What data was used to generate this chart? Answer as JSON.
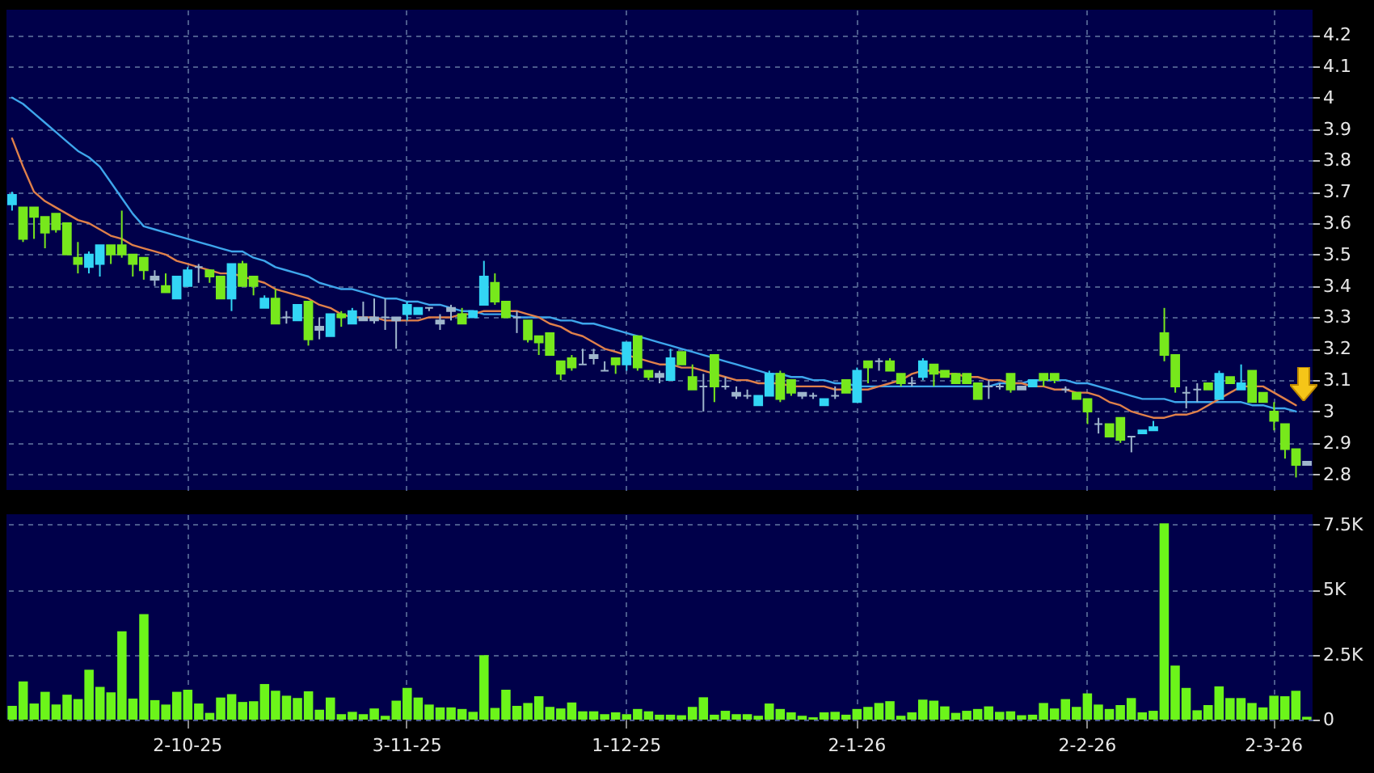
{
  "chart_data": [
    {
      "type": "candlestick",
      "categories": [
        null,
        null,
        null,
        null,
        null,
        null,
        null,
        null,
        null,
        null,
        null,
        null,
        null,
        null,
        null,
        null,
        null,
        null,
        null,
        null,
        null,
        null,
        null,
        null,
        null,
        null,
        null,
        null,
        null,
        null,
        null,
        null,
        null,
        null,
        null,
        null,
        null,
        null,
        null,
        null,
        null,
        null,
        null,
        null,
        null,
        null,
        null,
        null,
        null,
        null,
        null,
        null,
        null,
        null,
        null,
        null,
        null,
        null,
        null,
        null,
        null,
        null,
        null,
        null,
        null,
        null,
        null,
        null,
        null,
        null,
        null,
        null,
        null,
        null,
        null,
        null,
        null,
        null,
        null,
        null,
        null,
        null,
        null,
        null,
        null,
        null,
        null,
        null,
        null,
        null,
        null,
        null,
        null,
        null,
        null,
        null,
        null,
        null,
        null,
        null,
        null,
        null,
        null,
        null,
        null,
        null,
        null,
        null,
        null,
        null,
        null,
        null,
        null,
        null,
        null,
        null,
        null,
        null,
        null
      ],
      "ohlc": [
        [
          3.66,
          3.7,
          3.64,
          3.69
        ],
        [
          3.65,
          3.65,
          3.54,
          3.55
        ],
        [
          3.65,
          3.65,
          3.55,
          3.62
        ],
        [
          3.62,
          3.62,
          3.52,
          3.57
        ],
        [
          3.63,
          3.63,
          3.57,
          3.58
        ],
        [
          3.6,
          3.6,
          3.5,
          3.5
        ],
        [
          3.49,
          3.54,
          3.44,
          3.47
        ],
        [
          3.46,
          3.51,
          3.44,
          3.5
        ],
        [
          3.47,
          3.53,
          3.43,
          3.53
        ],
        [
          3.53,
          3.53,
          3.47,
          3.5
        ],
        [
          3.53,
          3.64,
          3.49,
          3.5
        ],
        [
          3.5,
          3.5,
          3.43,
          3.47
        ],
        [
          3.49,
          3.49,
          3.42,
          3.45
        ],
        [
          3.42,
          3.45,
          3.4,
          3.43
        ],
        [
          3.4,
          3.44,
          3.38,
          3.38
        ],
        [
          3.36,
          3.43,
          3.36,
          3.43
        ],
        [
          3.4,
          3.46,
          3.4,
          3.45
        ],
        [
          3.46,
          3.47,
          3.41,
          3.46
        ],
        [
          3.45,
          3.45,
          3.41,
          3.43
        ],
        [
          3.43,
          3.43,
          3.36,
          3.36
        ],
        [
          3.36,
          3.47,
          3.32,
          3.47
        ],
        [
          3.47,
          3.48,
          3.4,
          3.4
        ],
        [
          3.43,
          3.43,
          3.37,
          3.4
        ],
        [
          3.33,
          3.37,
          3.33,
          3.36
        ],
        [
          3.36,
          3.39,
          3.28,
          3.28
        ],
        [
          3.3,
          3.32,
          3.28,
          3.3
        ],
        [
          3.29,
          3.34,
          3.29,
          3.34
        ],
        [
          3.35,
          3.35,
          3.21,
          3.23
        ],
        [
          3.26,
          3.3,
          3.23,
          3.27
        ],
        [
          3.24,
          3.31,
          3.24,
          3.31
        ],
        [
          3.31,
          3.32,
          3.27,
          3.3
        ],
        [
          3.28,
          3.33,
          3.28,
          3.32
        ],
        [
          3.29,
          3.35,
          3.29,
          3.3
        ],
        [
          3.3,
          3.36,
          3.28,
          3.29
        ],
        [
          3.3,
          3.36,
          3.26,
          3.3
        ],
        [
          3.3,
          3.3,
          3.2,
          3.29
        ],
        [
          3.31,
          3.35,
          3.29,
          3.34
        ],
        [
          3.31,
          3.33,
          3.31,
          3.33
        ],
        [
          3.33,
          3.33,
          3.32,
          3.33
        ],
        [
          3.29,
          3.31,
          3.26,
          3.28
        ],
        [
          3.33,
          3.34,
          3.29,
          3.32
        ],
        [
          3.31,
          3.33,
          3.28,
          3.28
        ],
        [
          3.3,
          3.32,
          3.3,
          3.32
        ],
        [
          3.34,
          3.48,
          3.34,
          3.43
        ],
        [
          3.41,
          3.44,
          3.34,
          3.35
        ],
        [
          3.35,
          3.35,
          3.3,
          3.3
        ],
        [
          3.3,
          3.32,
          3.25,
          3.3
        ],
        [
          3.29,
          3.29,
          3.22,
          3.23
        ],
        [
          3.24,
          3.24,
          3.18,
          3.22
        ],
        [
          3.25,
          3.25,
          3.18,
          3.18
        ],
        [
          3.16,
          3.16,
          3.1,
          3.12
        ],
        [
          3.17,
          3.18,
          3.13,
          3.14
        ],
        [
          3.15,
          3.2,
          3.15,
          3.15
        ],
        [
          3.17,
          3.2,
          3.15,
          3.18
        ],
        [
          3.13,
          3.16,
          3.13,
          3.13
        ],
        [
          3.17,
          3.17,
          3.12,
          3.15
        ],
        [
          3.15,
          3.22,
          3.13,
          3.22
        ],
        [
          3.24,
          3.24,
          3.13,
          3.14
        ],
        [
          3.13,
          3.13,
          3.1,
          3.11
        ],
        [
          3.12,
          3.13,
          3.09,
          3.11
        ],
        [
          3.1,
          3.2,
          3.1,
          3.17
        ],
        [
          3.19,
          3.19,
          3.15,
          3.15
        ],
        [
          3.11,
          3.15,
          3.07,
          3.07
        ],
        [
          3.08,
          3.12,
          3.0,
          3.08
        ],
        [
          3.18,
          3.18,
          3.03,
          3.08
        ],
        [
          3.08,
          3.11,
          3.07,
          3.08
        ],
        [
          3.06,
          3.08,
          3.04,
          3.05
        ],
        [
          3.05,
          3.07,
          3.04,
          3.05
        ],
        [
          3.02,
          3.05,
          3.02,
          3.05
        ],
        [
          3.05,
          3.13,
          3.05,
          3.12
        ],
        [
          3.12,
          3.13,
          3.03,
          3.04
        ],
        [
          3.1,
          3.1,
          3.05,
          3.06
        ],
        [
          3.06,
          3.06,
          3.04,
          3.05
        ],
        [
          3.05,
          3.06,
          3.04,
          3.05
        ],
        [
          3.02,
          3.04,
          3.02,
          3.04
        ],
        [
          3.05,
          3.08,
          3.04,
          3.05
        ],
        [
          3.1,
          3.1,
          3.06,
          3.06
        ],
        [
          3.03,
          3.14,
          3.03,
          3.13
        ],
        [
          3.16,
          3.16,
          3.09,
          3.14
        ],
        [
          3.16,
          3.17,
          3.13,
          3.16
        ],
        [
          3.16,
          3.17,
          3.13,
          3.13
        ],
        [
          3.12,
          3.12,
          3.08,
          3.09
        ],
        [
          3.09,
          3.11,
          3.08,
          3.09
        ],
        [
          3.11,
          3.17,
          3.1,
          3.16
        ],
        [
          3.15,
          3.15,
          3.08,
          3.12
        ],
        [
          3.13,
          3.13,
          3.11,
          3.11
        ],
        [
          3.12,
          3.12,
          3.09,
          3.09
        ],
        [
          3.12,
          3.12,
          3.09,
          3.09
        ],
        [
          3.09,
          3.09,
          3.04,
          3.04
        ],
        [
          3.08,
          3.1,
          3.04,
          3.08
        ],
        [
          3.08,
          3.09,
          3.07,
          3.08
        ],
        [
          3.12,
          3.12,
          3.06,
          3.07
        ],
        [
          3.08,
          3.08,
          3.07,
          3.07
        ],
        [
          3.08,
          3.1,
          3.08,
          3.1
        ],
        [
          3.12,
          3.12,
          3.08,
          3.1
        ],
        [
          3.12,
          3.12,
          3.09,
          3.1
        ],
        [
          3.07,
          3.08,
          3.06,
          3.07
        ],
        [
          3.06,
          3.06,
          3.04,
          3.04
        ],
        [
          3.04,
          3.04,
          2.96,
          3.0
        ],
        [
          2.96,
          2.98,
          2.93,
          2.96
        ],
        [
          2.96,
          2.96,
          2.92,
          2.92
        ],
        [
          2.98,
          2.98,
          2.9,
          2.91
        ],
        [
          2.92,
          2.92,
          2.87,
          2.92
        ],
        [
          2.93,
          2.94,
          2.93,
          2.94
        ],
        [
          2.94,
          2.97,
          2.94,
          2.95
        ],
        [
          3.25,
          3.33,
          3.16,
          3.18
        ],
        [
          3.18,
          3.18,
          3.06,
          3.08
        ],
        [
          3.06,
          3.08,
          3.01,
          3.06
        ],
        [
          3.07,
          3.09,
          3.03,
          3.07
        ],
        [
          3.09,
          3.09,
          3.07,
          3.07
        ],
        [
          3.04,
          3.13,
          3.04,
          3.12
        ],
        [
          3.11,
          3.11,
          3.09,
          3.09
        ],
        [
          3.07,
          3.15,
          3.07,
          3.09
        ],
        [
          3.13,
          3.13,
          3.03,
          3.03
        ],
        [
          3.06,
          3.06,
          3.03,
          3.03
        ],
        [
          3.0,
          3.03,
          2.94,
          2.97
        ],
        [
          2.96,
          2.96,
          2.85,
          2.88
        ],
        [
          2.88,
          2.88,
          2.79,
          2.83
        ],
        [
          2.83,
          2.84,
          2.83,
          2.84
        ]
      ],
      "colors": [
        "#33d6f5",
        "#77e81c",
        "#77e81c",
        "#77e81c",
        "#77e81c",
        "#77e81c",
        "#77e81c",
        "#33d6f5",
        "#33d6f5",
        "#77e81c",
        "#77e81c",
        "#77e81c",
        "#77e81c",
        "#9fb6cc",
        "#77e81c",
        "#33d6f5",
        "#33d6f5",
        "#9fb6cc",
        "#77e81c",
        "#77e81c",
        "#33d6f5",
        "#77e81c",
        "#77e81c",
        "#33d6f5",
        "#77e81c",
        "#9fb6cc",
        "#33d6f5",
        "#77e81c",
        "#9fb6cc",
        "#33d6f5",
        "#77e81c",
        "#33d6f5",
        "#9fb6cc",
        "#9fb6cc",
        "#9fb6cc",
        "#9fb6cc",
        "#33d6f5",
        "#33d6f5",
        "#9fb6cc",
        "#9fb6cc",
        "#9fb6cc",
        "#77e81c",
        "#33d6f5",
        "#33d6f5",
        "#77e81c",
        "#77e81c",
        "#9fb6cc",
        "#77e81c",
        "#77e81c",
        "#77e81c",
        "#77e81c",
        "#77e81c",
        "#9fb6cc",
        "#9fb6cc",
        "#9fb6cc",
        "#77e81c",
        "#33d6f5",
        "#77e81c",
        "#77e81c",
        "#9fb6cc",
        "#33d6f5",
        "#77e81c",
        "#77e81c",
        "#9fb6cc",
        "#77e81c",
        "#9fb6cc",
        "#9fb6cc",
        "#9fb6cc",
        "#33d6f5",
        "#33d6f5",
        "#77e81c",
        "#77e81c",
        "#9fb6cc",
        "#9fb6cc",
        "#33d6f5",
        "#9fb6cc",
        "#77e81c",
        "#33d6f5",
        "#77e81c",
        "#9fb6cc",
        "#77e81c",
        "#77e81c",
        "#9fb6cc",
        "#33d6f5",
        "#77e81c",
        "#77e81c",
        "#77e81c",
        "#77e81c",
        "#77e81c",
        "#9fb6cc",
        "#9fb6cc",
        "#77e81c",
        "#9fb6cc",
        "#33d6f5",
        "#77e81c",
        "#77e81c",
        "#9fb6cc",
        "#77e81c",
        "#77e81c",
        "#9fb6cc",
        "#77e81c",
        "#77e81c",
        "#9fb6cc",
        "#33d6f5",
        "#33d6f5",
        "#77e81c",
        "#77e81c",
        "#9fb6cc",
        "#9fb6cc",
        "#77e81c",
        "#33d6f5",
        "#77e81c",
        "#33d6f5",
        "#77e81c",
        "#77e81c",
        "#77e81c",
        "#77e81c",
        "#77e81c",
        "#9fb6cc"
      ],
      "series": [
        {
          "type": "line",
          "color": "#3ea6ec",
          "values": [
            4.0,
            3.98,
            3.95,
            3.92,
            3.89,
            3.86,
            3.83,
            3.81,
            3.78,
            3.73,
            3.68,
            3.63,
            3.59,
            3.58,
            3.57,
            3.56,
            3.55,
            3.54,
            3.53,
            3.52,
            3.51,
            3.51,
            3.49,
            3.48,
            3.46,
            3.45,
            3.44,
            3.43,
            3.41,
            3.4,
            3.39,
            3.39,
            3.38,
            3.37,
            3.36,
            3.36,
            3.35,
            3.35,
            3.34,
            3.34,
            3.33,
            3.32,
            3.32,
            3.31,
            3.31,
            3.31,
            3.3,
            3.3,
            3.3,
            3.3,
            3.29,
            3.29,
            3.28,
            3.28,
            3.27,
            3.26,
            3.25,
            3.24,
            3.23,
            3.22,
            3.21,
            3.2,
            3.19,
            3.18,
            3.17,
            3.16,
            3.15,
            3.14,
            3.13,
            3.12,
            3.12,
            3.11,
            3.11,
            3.1,
            3.1,
            3.09,
            3.09,
            3.08,
            3.08,
            3.08,
            3.08,
            3.08,
            3.08,
            3.08,
            3.08,
            3.08,
            3.08,
            3.08,
            3.08,
            3.08,
            3.09,
            3.09,
            3.09,
            3.1,
            3.1,
            3.1,
            3.1,
            3.09,
            3.09,
            3.08,
            3.07,
            3.06,
            3.05,
            3.04,
            3.04,
            3.04,
            3.03,
            3.03,
            3.03,
            3.03,
            3.03,
            3.03,
            3.03,
            3.02,
            3.02,
            3.01,
            3.01,
            3.0,
            null
          ]
        },
        {
          "type": "line",
          "color": "#e0804a",
          "values": [
            3.87,
            3.78,
            3.7,
            3.67,
            3.65,
            3.63,
            3.61,
            3.6,
            3.58,
            3.56,
            3.55,
            3.53,
            3.52,
            3.51,
            3.5,
            3.48,
            3.47,
            3.46,
            3.45,
            3.44,
            3.44,
            3.43,
            3.42,
            3.41,
            3.39,
            3.38,
            3.37,
            3.36,
            3.34,
            3.33,
            3.31,
            3.3,
            3.3,
            3.3,
            3.29,
            3.29,
            3.29,
            3.29,
            3.3,
            3.3,
            3.3,
            3.31,
            3.31,
            3.32,
            3.32,
            3.32,
            3.32,
            3.31,
            3.3,
            3.28,
            3.27,
            3.25,
            3.24,
            3.22,
            3.2,
            3.19,
            3.18,
            3.17,
            3.16,
            3.15,
            3.15,
            3.14,
            3.14,
            3.13,
            3.12,
            3.11,
            3.1,
            3.1,
            3.09,
            3.09,
            3.09,
            3.08,
            3.08,
            3.08,
            3.08,
            3.07,
            3.07,
            3.07,
            3.07,
            3.08,
            3.09,
            3.1,
            3.12,
            3.13,
            3.13,
            3.12,
            3.12,
            3.11,
            3.11,
            3.1,
            3.1,
            3.09,
            3.09,
            3.08,
            3.08,
            3.07,
            3.07,
            3.06,
            3.06,
            3.05,
            3.03,
            3.02,
            3.0,
            2.99,
            2.98,
            2.98,
            2.99,
            2.99,
            3.0,
            3.02,
            3.04,
            3.06,
            3.08,
            3.08,
            3.08,
            3.06,
            3.04,
            3.02,
            null
          ]
        }
      ],
      "ylim": [
        2.75,
        4.28
      ],
      "yticks": [
        2.8,
        2.9,
        3,
        3.1,
        3.2,
        3.3,
        3.4,
        3.5,
        3.6,
        3.7,
        3.8,
        3.9,
        4,
        4.1,
        4.2
      ],
      "grid": true,
      "tick_labels": "y"
    },
    {
      "type": "bar",
      "categories": [
        null,
        null,
        null,
        null,
        null,
        null,
        null,
        null,
        null,
        null,
        null,
        null,
        null,
        null,
        null,
        null,
        "2-10-25",
        null,
        null,
        null,
        null,
        null,
        null,
        null,
        null,
        null,
        null,
        null,
        null,
        null,
        null,
        null,
        null,
        null,
        null,
        null,
        "3-11-25",
        null,
        null,
        null,
        null,
        null,
        null,
        null,
        null,
        null,
        null,
        null,
        null,
        null,
        null,
        null,
        null,
        null,
        null,
        null,
        "1-12-25",
        null,
        null,
        null,
        null,
        null,
        null,
        null,
        null,
        null,
        null,
        null,
        null,
        null,
        null,
        null,
        null,
        null,
        null,
        null,
        null,
        "2-1-26",
        null,
        null,
        null,
        null,
        null,
        null,
        null,
        null,
        null,
        null,
        null,
        null,
        null,
        null,
        null,
        null,
        null,
        null,
        null,
        null,
        "2-2-26",
        null,
        null,
        null,
        null,
        null,
        null,
        null,
        null,
        null,
        null,
        null,
        null,
        null,
        null,
        null,
        null,
        "2-3-26",
        null,
        null,
        null
      ],
      "values": [
        530,
        1470,
        620,
        1070,
        580,
        960,
        790,
        1920,
        1260,
        1050,
        3400,
        810,
        4060,
        750,
        580,
        1070,
        1150,
        620,
        260,
        850,
        980,
        680,
        710,
        1370,
        1110,
        920,
        830,
        1090,
        380,
        850,
        210,
        300,
        210,
        430,
        150,
        730,
        1220,
        850,
        580,
        470,
        470,
        410,
        300,
        2480,
        450,
        1150,
        530,
        640,
        900,
        490,
        430,
        660,
        320,
        320,
        210,
        280,
        210,
        410,
        320,
        190,
        190,
        170,
        490,
        860,
        190,
        340,
        210,
        210,
        150,
        620,
        410,
        280,
        150,
        90,
        280,
        300,
        190,
        410,
        490,
        640,
        710,
        150,
        280,
        770,
        730,
        510,
        260,
        340,
        410,
        510,
        300,
        320,
        170,
        190,
        640,
        430,
        790,
        490,
        1010,
        580,
        410,
        560,
        830,
        280,
        340,
        7550,
        2080,
        1220,
        360,
        560,
        1280,
        830,
        830,
        640,
        470,
        920,
        900,
        1110,
        110
      ],
      "color": "#6cf51a",
      "ylim": [
        0,
        7900
      ],
      "yticks": [
        0,
        {
          "value": 2500,
          "label": "2.5K"
        },
        {
          "value": 5000,
          "label": "5K"
        },
        {
          "value": 7500,
          "label": "7.5K"
        }
      ],
      "grid": true
    }
  ]
}
